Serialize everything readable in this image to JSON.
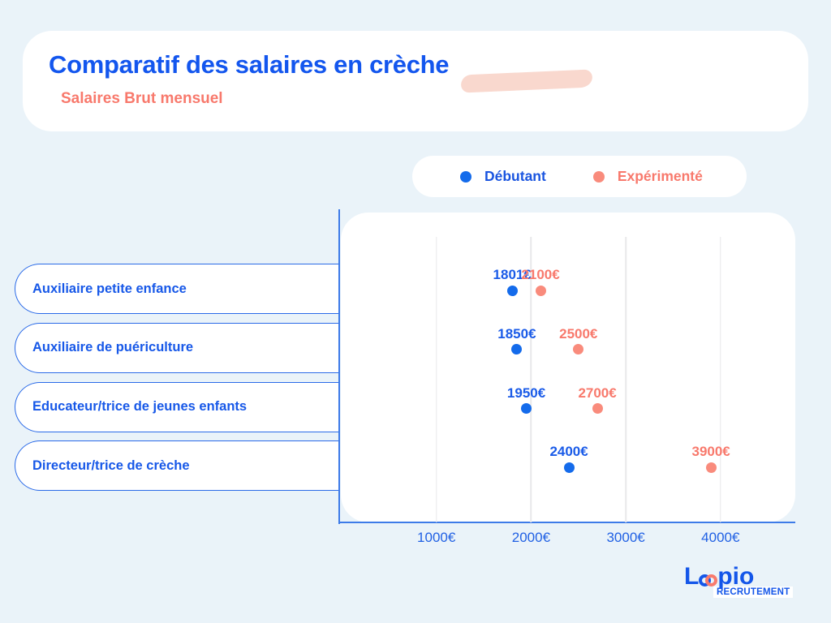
{
  "header": {
    "title": "Comparatif des salaires en crèche",
    "subtitle": "Salaires Brut mensuel"
  },
  "legend": {
    "items": [
      {
        "label": "Débutant",
        "color": "#146BEB"
      },
      {
        "label": "Expérimenté",
        "color": "#F98B7C"
      }
    ]
  },
  "chart_data": {
    "type": "scatter",
    "title": "Comparatif des salaires en crèche",
    "subtitle": "Salaires Brut mensuel",
    "categories": [
      "Auxiliaire petite enfance",
      "Auxiliaire de puériculture",
      "Educateur/trice de jeunes enfants",
      "Directeur/trice de crèche"
    ],
    "series": [
      {
        "name": "Débutant",
        "color_dot": "#146BEB",
        "color_text": "#1A5BE8",
        "values": [
          1801,
          1850,
          1950,
          2400
        ],
        "labels": [
          "1801€",
          "1850€",
          "1950€",
          "2400€"
        ]
      },
      {
        "name": "Expérimenté",
        "color_dot": "#F98B7C",
        "color_text": "#F8796C",
        "values": [
          2100,
          2500,
          2700,
          3900
        ],
        "labels": [
          "2100€",
          "2500€",
          "2700€",
          "3900€"
        ]
      }
    ],
    "x_ticks": [
      "1000€",
      "2000€",
      "3000€",
      "4000€"
    ],
    "x_tick_values": [
      1000,
      2000,
      3000,
      4000
    ],
    "xlim": [
      0,
      4800
    ],
    "xlabel": "",
    "ylabel": "",
    "grid": "vertical",
    "legend_position": "top"
  },
  "logo": {
    "brand_l": "L",
    "brand_rest": "pio",
    "tagline": "RECRUTEMENT"
  },
  "colors": {
    "background": "#EAF3F9",
    "card": "#FFFFFF",
    "title_blue": "#1356EE",
    "accent_blue": "#146BEB",
    "accent_coral": "#F8796C",
    "highlight_pink": "#F9D8CE",
    "axis_blue": "#3D7BE8",
    "gridline_gray": "#E8E8EA"
  }
}
